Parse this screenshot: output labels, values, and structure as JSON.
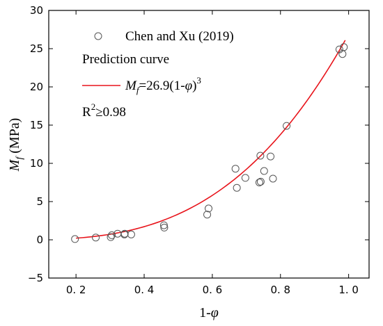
{
  "chart_data": {
    "type": "scatter",
    "xlabel": {
      "prefix": "1-",
      "symbol": "φ"
    },
    "ylabel": {
      "symbol": "M",
      "sub": "f",
      "unit": " (MPa)"
    },
    "xlim": [
      0.12,
      1.06
    ],
    "ylim": [
      -5,
      30
    ],
    "xticks": [
      0.2,
      0.4,
      0.6,
      0.8,
      1.0
    ],
    "xtick_labels": [
      "0. 2",
      "0. 4",
      "0. 6",
      "0. 8",
      "1. 0"
    ],
    "yticks": [
      -5,
      0,
      5,
      10,
      15,
      20,
      25,
      30
    ],
    "ytick_labels": [
      "−5",
      "0",
      "5",
      "10",
      "15",
      "20",
      "25",
      "30"
    ],
    "grid": false,
    "legend_position": "top-left",
    "series": [
      {
        "name": "Chen and Xu (2019)",
        "marker": "open-circle",
        "color": "#555555",
        "points": [
          [
            0.197,
            0.1
          ],
          [
            0.258,
            0.3
          ],
          [
            0.302,
            0.35
          ],
          [
            0.305,
            0.6
          ],
          [
            0.322,
            0.8
          ],
          [
            0.342,
            0.7
          ],
          [
            0.343,
            0.8
          ],
          [
            0.362,
            0.7
          ],
          [
            0.458,
            1.9
          ],
          [
            0.459,
            1.6
          ],
          [
            0.585,
            3.3
          ],
          [
            0.589,
            4.1
          ],
          [
            0.668,
            9.3
          ],
          [
            0.672,
            6.8
          ],
          [
            0.697,
            8.1
          ],
          [
            0.738,
            7.5
          ],
          [
            0.741,
            11.0
          ],
          [
            0.742,
            7.6
          ],
          [
            0.752,
            9.0
          ],
          [
            0.771,
            10.9
          ],
          [
            0.778,
            8.0
          ],
          [
            0.818,
            14.9
          ],
          [
            0.973,
            24.9
          ],
          [
            0.982,
            24.3
          ],
          [
            0.986,
            25.2
          ]
        ]
      },
      {
        "name": "Prediction curve",
        "type": "line",
        "color": "#e8141b",
        "x_range": [
          0.2,
          0.99
        ]
      }
    ],
    "annotations": {
      "legend_title": "Prediction curve",
      "equation": {
        "symbol": "M",
        "sub": "f",
        "body": "=26.9(1-",
        "phi": "φ",
        "close": ")",
        "exp": "3"
      },
      "r2": {
        "base": "R",
        "exp": "2",
        "rest": "≥0.98"
      }
    },
    "model": {
      "coefficient": 26.9,
      "exponent": 3
    }
  }
}
